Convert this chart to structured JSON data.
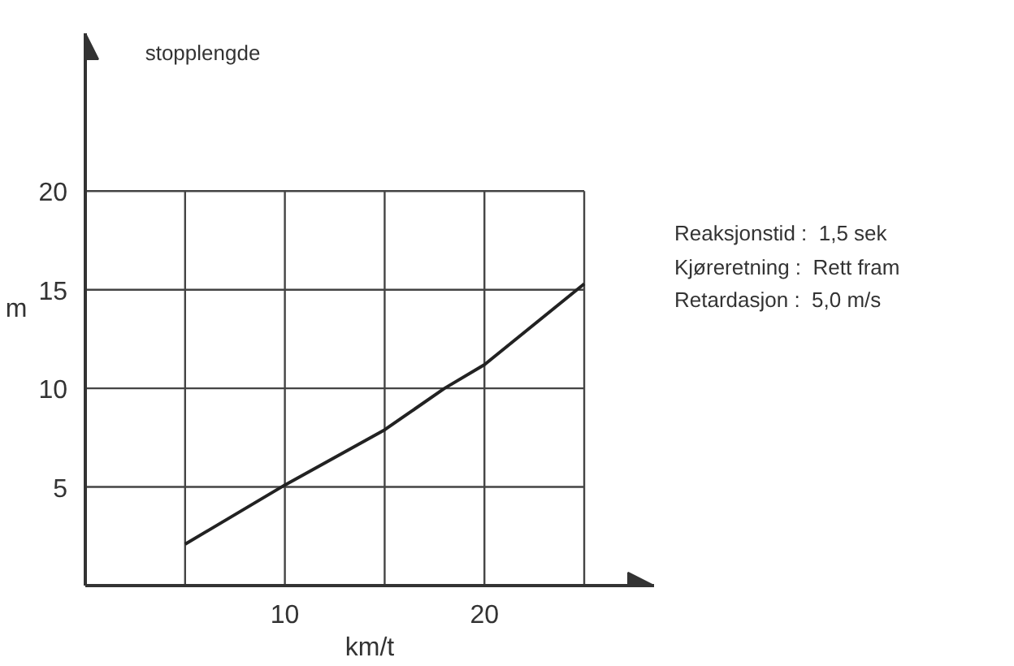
{
  "chart_data": {
    "type": "line",
    "title": "stopplengde",
    "ylabel": "m",
    "xlabel": "km/t",
    "x": [
      5,
      10,
      15,
      18,
      20,
      25
    ],
    "series": [
      {
        "color": "#222222",
        "values": [
          2.1,
          5.1,
          7.9,
          10,
          11.2,
          15.3
        ]
      }
    ],
    "xlim": [
      0,
      28.5
    ],
    "ylim": [
      0,
      28
    ],
    "xticks": [
      {
        "value": 5,
        "label": null
      },
      10,
      {
        "value": 15,
        "label": null
      },
      20,
      {
        "value": 25,
        "label": null
      }
    ],
    "yticks": [
      5,
      10,
      15,
      20
    ],
    "grid": true,
    "marker": "none",
    "line_style": "solid",
    "annotations": [
      "Reaksjonstid :  1,5 sek",
      "Kjøreretning :  Rett fram",
      "Retardasjon :  5,0 m/s"
    ]
  }
}
